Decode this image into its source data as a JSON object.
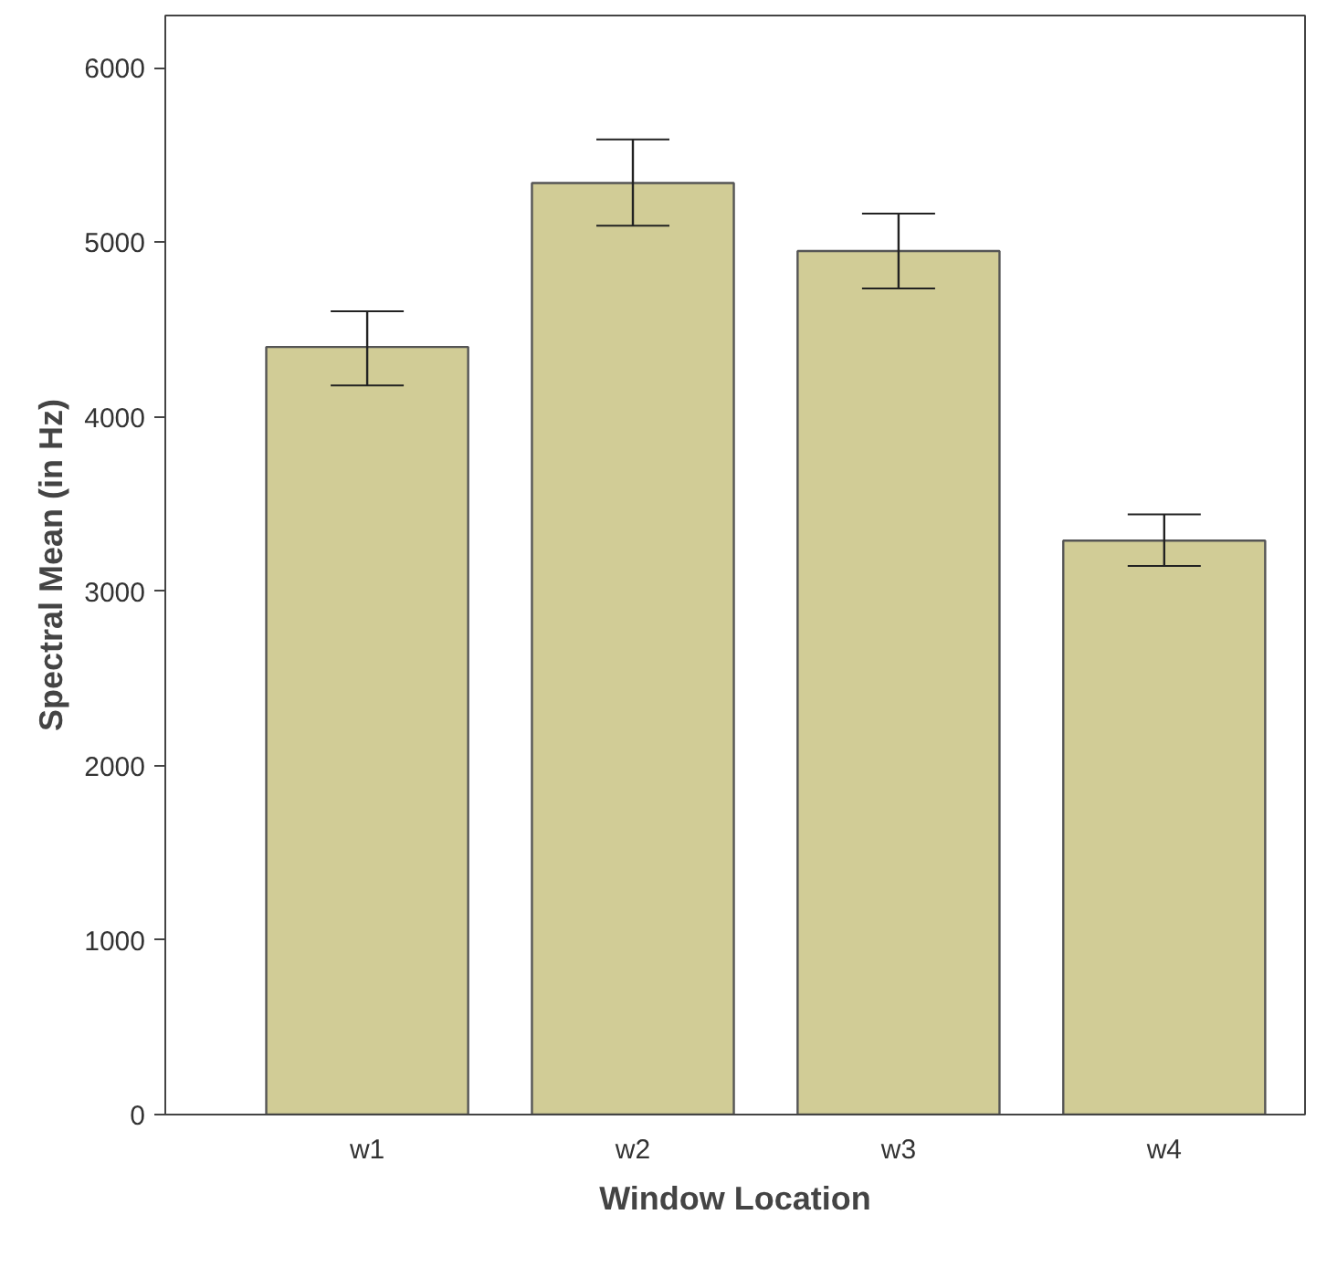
{
  "chart_data": {
    "type": "bar",
    "xlabel": "Window Location",
    "ylabel": "Spectral Mean (in Hz)",
    "categories": [
      "w1",
      "w2",
      "w3",
      "w4"
    ],
    "values": [
      4400,
      5340,
      4950,
      3290
    ],
    "errors": [
      [
        4180,
        4605
      ],
      [
        5095,
        5590
      ],
      [
        4735,
        5165
      ],
      [
        3145,
        3440
      ]
    ],
    "color": "#d1cc96",
    "ylim": [
      0,
      6300
    ],
    "yticks": [
      0,
      1000,
      2000,
      3000,
      4000,
      5000,
      6000
    ],
    "grid": false
  }
}
